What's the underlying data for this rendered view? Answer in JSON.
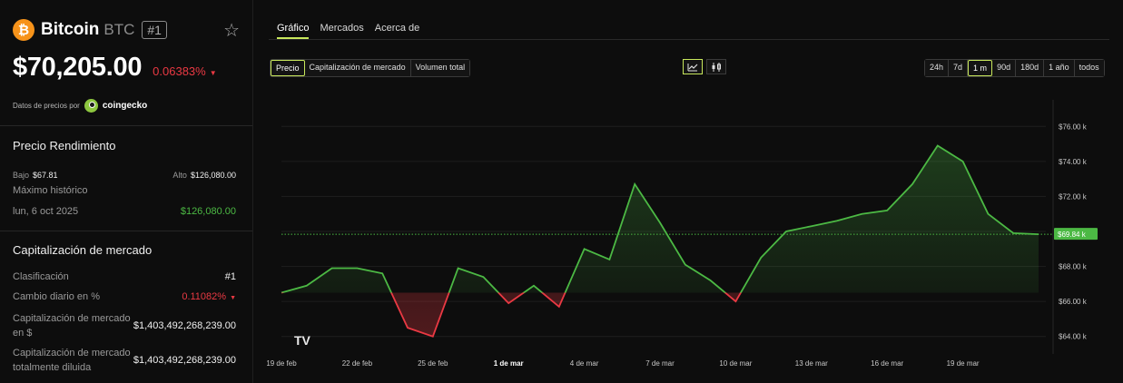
{
  "coin": {
    "logo_symbol": "₿",
    "name": "Bitcoin",
    "symbol": "BTC",
    "rank": "#1",
    "price": "$70,205.00",
    "change": "0.06383%",
    "price_by_label": "Datos de precios por",
    "provider": "coingecko"
  },
  "performance": {
    "title": "Precio Rendimiento",
    "low_label": "Bajo",
    "low_value": "$67.81",
    "high_label": "Alto",
    "high_value": "$126,080.00",
    "ath_label": "Máximo histórico",
    "ath_date": "lun, 6 oct 2025",
    "ath_value": "$126,080.00"
  },
  "market_cap": {
    "title": "Capitalización de mercado",
    "rank_label": "Clasificación",
    "rank_value": "#1",
    "daily_label": "Cambio diario en %",
    "daily_value": "0.11082%",
    "cap_label": "Capitalización de mercado en $",
    "cap_value": "$1,403,492,268,239.00",
    "fdv_label": "Capitalización de mercado totalmente diluida",
    "fdv_value": "$1,403,492,268,239.00"
  },
  "tabs": [
    {
      "label": "Gráfico",
      "active": true
    },
    {
      "label": "Mercados",
      "active": false
    },
    {
      "label": "Acerca de",
      "active": false
    }
  ],
  "metric_buttons": [
    {
      "label": "Precio",
      "active": true
    },
    {
      "label": "Capitalización de mercado",
      "active": false
    },
    {
      "label": "Volumen total",
      "active": false
    }
  ],
  "chart_type_icons": [
    "line-chart-icon",
    "candlestick-icon"
  ],
  "range_buttons": [
    {
      "label": "24h",
      "active": false
    },
    {
      "label": "7d",
      "active": false
    },
    {
      "label": "1 m",
      "active": true
    },
    {
      "label": "90d",
      "active": false
    },
    {
      "label": "180d",
      "active": false
    },
    {
      "label": "1 año",
      "active": false
    },
    {
      "label": "todos",
      "active": false
    }
  ],
  "colors": {
    "accent": "#c8e85c",
    "up": "#4cb944",
    "down": "#ea3943",
    "bitcoin": "#f7931a"
  },
  "chart_data": {
    "type": "area",
    "series": [
      {
        "x": [
          0,
          1,
          2,
          3,
          4,
          5,
          6,
          7,
          8,
          9,
          10,
          11,
          12,
          13,
          14,
          15,
          16,
          17,
          18,
          19,
          20,
          21,
          22,
          23,
          24,
          25,
          26,
          27,
          28,
          29,
          30
        ],
        "values": [
          66.5,
          66.9,
          67.9,
          67.9,
          67.6,
          64.5,
          64.0,
          67.9,
          67.4,
          65.9,
          66.9,
          65.7,
          69.0,
          68.4,
          72.7,
          70.5,
          68.1,
          67.2,
          66.0,
          68.5,
          70.0,
          70.3,
          70.6,
          71.0,
          71.2,
          72.7,
          74.9,
          74.0,
          71.0,
          69.9,
          69.84
        ]
      }
    ],
    "baseline": 66.5,
    "current_value": 69.84,
    "current_label": "$69.84 k",
    "ylim": [
      63.0,
      77.0
    ],
    "yticks": [
      64,
      66,
      68,
      70,
      72,
      74,
      76
    ],
    "ytick_labels": [
      "$64.00 k",
      "$66.00 k",
      "$68.00 k",
      "$70.00 k",
      "$72.00 k",
      "$74.00 k",
      "$76.00 k"
    ],
    "xticks": [
      0,
      3,
      6,
      9,
      12,
      15,
      18,
      21,
      24,
      27
    ],
    "xtick_labels": [
      "19 de feb",
      "22 de feb",
      "25 de feb",
      "1 de mar",
      "4 de mar",
      "7 de mar",
      "10 de mar",
      "13 de mar",
      "16 de mar",
      "19 de mar"
    ],
    "bold_xtick": "1 de mar",
    "watermark": "TV",
    "grid": true
  }
}
